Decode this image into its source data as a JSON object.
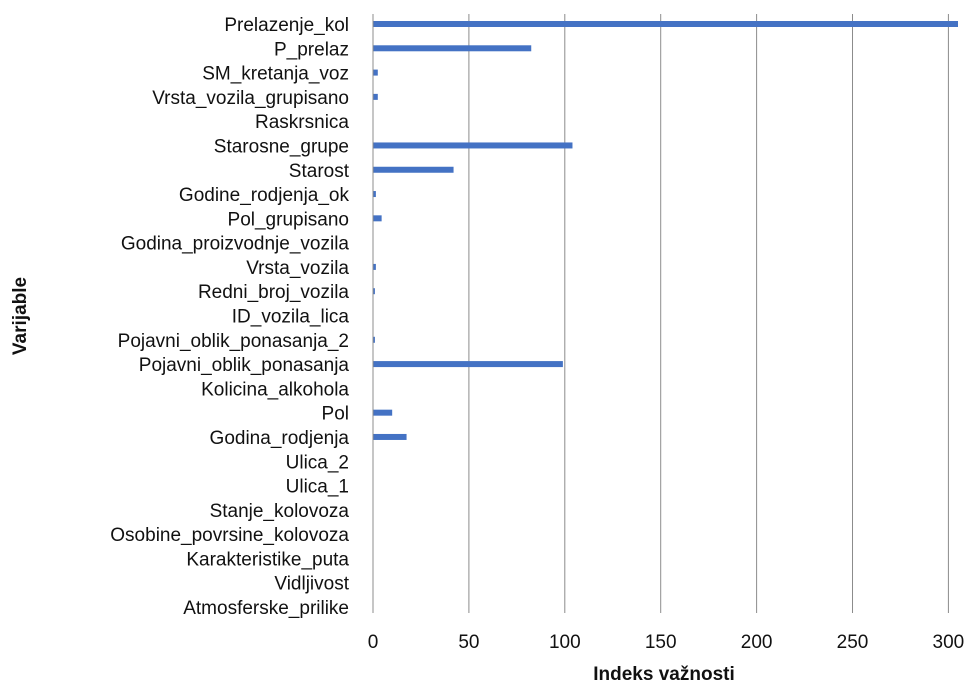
{
  "chart_data": {
    "type": "bar",
    "orientation": "horizontal",
    "categories": [
      "Prelazenje_kol",
      "P_prelaz",
      "SM_kretanja_voz",
      "Vrsta_vozila_grupisano",
      "Raskrsnica",
      "Starosne_grupe",
      "Starost",
      "Godine_rodjenja_ok",
      "Pol_grupisano",
      "Godina_proizvodnje_vozila",
      "Vrsta_vozila",
      "Redni_broj_vozila",
      "ID_vozila_lica",
      "Pojavni_oblik_ponasanja_2",
      "Pojavni_oblik_ponasanja",
      "Kolicina_alkohola",
      "Pol",
      "Godina_rodjenja",
      "Ulica_2",
      "Ulica_1",
      "Stanje_kolovoza",
      "Osobine_povrsine_kolovoza",
      "Karakteristike_puta",
      "Vidljivost",
      "Atmosferske_prilike"
    ],
    "values": [
      305,
      82.5,
      2.5,
      2.5,
      0,
      104,
      42,
      1.5,
      4.5,
      0,
      1.5,
      1,
      0,
      1,
      99,
      0,
      10,
      17.5,
      0,
      0,
      0,
      0,
      0,
      0,
      0
    ],
    "xlabel": "Indeks važnosti",
    "ylabel": "Varijable",
    "xlim": [
      0,
      305
    ],
    "xticks": [
      0,
      50,
      100,
      150,
      200,
      250,
      300
    ],
    "grid": "vertical",
    "legend": "none",
    "bar_color": "#4472c4",
    "grid_color": "#8c8c8c"
  }
}
